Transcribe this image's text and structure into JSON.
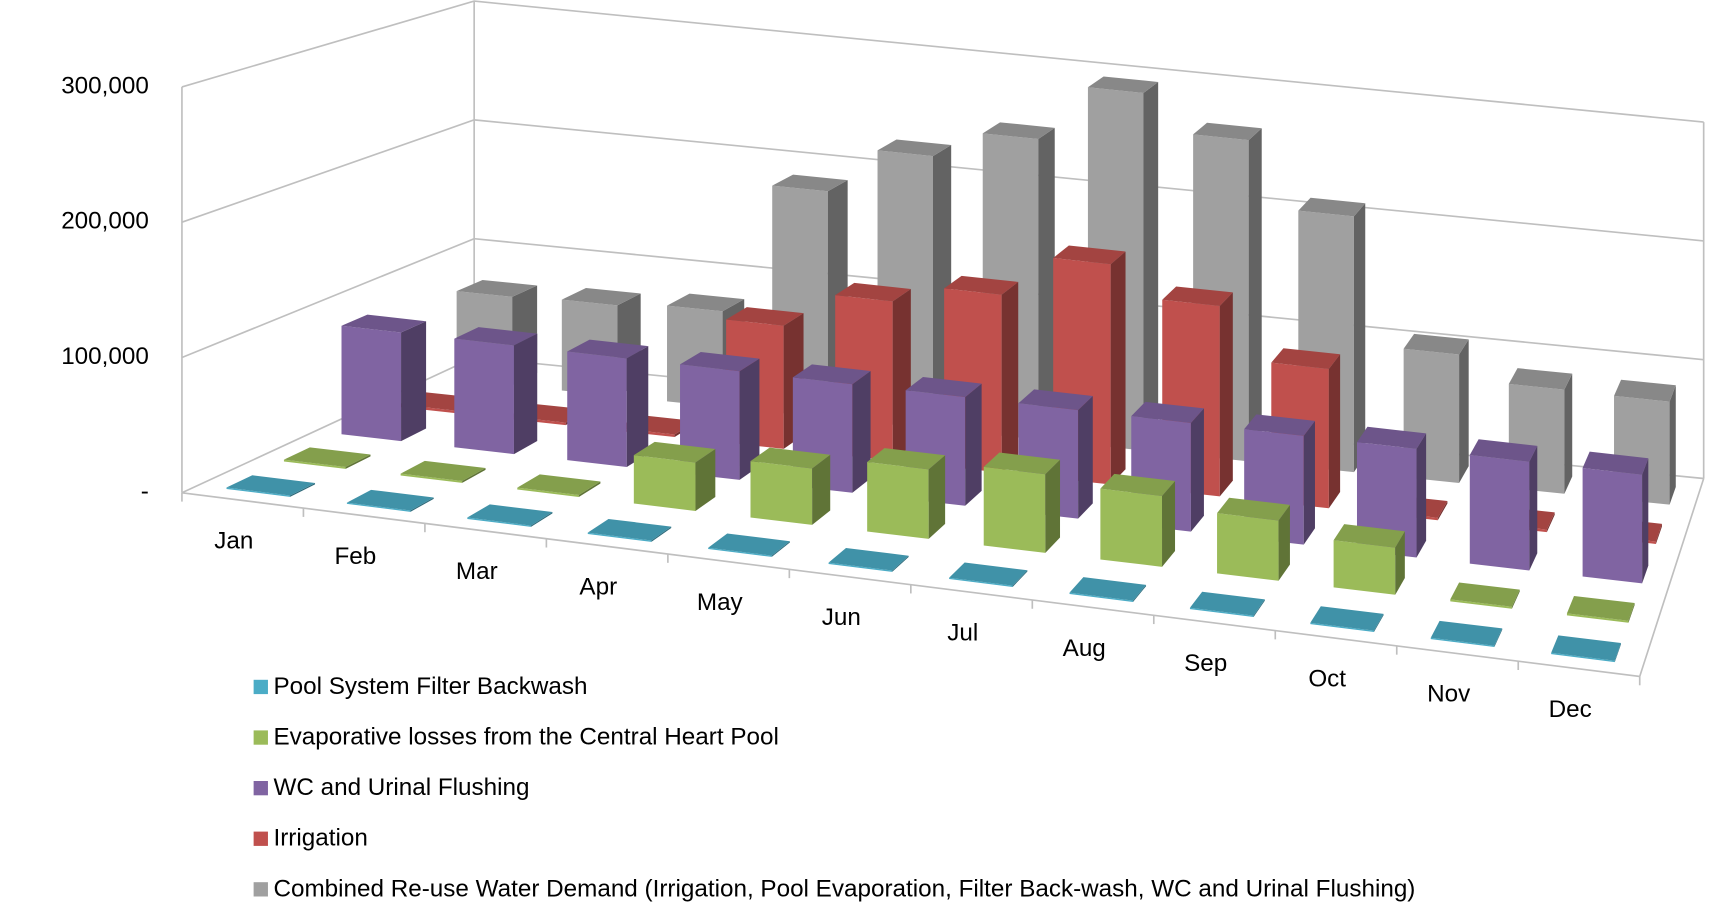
{
  "chart_data": {
    "type": "bar3d",
    "categories": [
      "Jan",
      "Feb",
      "Mar",
      "Apr",
      "May",
      "Jun",
      "Jul",
      "Aug",
      "Sep",
      "Oct",
      "Nov",
      "Dec"
    ],
    "series": [
      {
        "name": "Pool System Filter Backwash",
        "color": "#4bacc6",
        "values": [
          1000,
          1000,
          1000,
          1000,
          1000,
          1000,
          1000,
          1000,
          1000,
          1000,
          1000,
          1000
        ]
      },
      {
        "name": "Evaporative losses from the Central Heart Pool",
        "color": "#9bbb59",
        "values": [
          1500,
          1500,
          1500,
          37000,
          43000,
          53000,
          60000,
          54000,
          46000,
          36000,
          1500,
          1500
        ]
      },
      {
        "name": "WC and Urinal Flushing",
        "color": "#8064a2",
        "values": [
          85000,
          85000,
          85000,
          85000,
          85000,
          85000,
          85000,
          85000,
          85000,
          85000,
          85000,
          85000
        ]
      },
      {
        "name": "Irrigation",
        "color": "#c0504d",
        "values": [
          2000,
          2000,
          2000,
          99000,
          128000,
          143000,
          177000,
          153000,
          112000,
          2000,
          2000,
          2000
        ]
      },
      {
        "name": "Combined Re-use Water Demand (Irrigation, Pool Evaporation, Filter Back-wash, WC and Urinal Flushing)",
        "color": "#a0a0a0",
        "values": [
          73000,
          75000,
          79000,
          187000,
          225000,
          248000,
          295000,
          265000,
          211000,
          106000,
          86000,
          85000
        ]
      }
    ],
    "ylim": [
      0,
      300000
    ],
    "yticks": [
      {
        "value": 0,
        "label": "-"
      },
      {
        "value": 100000,
        "label": "100,000"
      },
      {
        "value": 200000,
        "label": "200,000"
      },
      {
        "value": 300000,
        "label": "300,000"
      }
    ],
    "grid": true,
    "legend": "bottom"
  }
}
